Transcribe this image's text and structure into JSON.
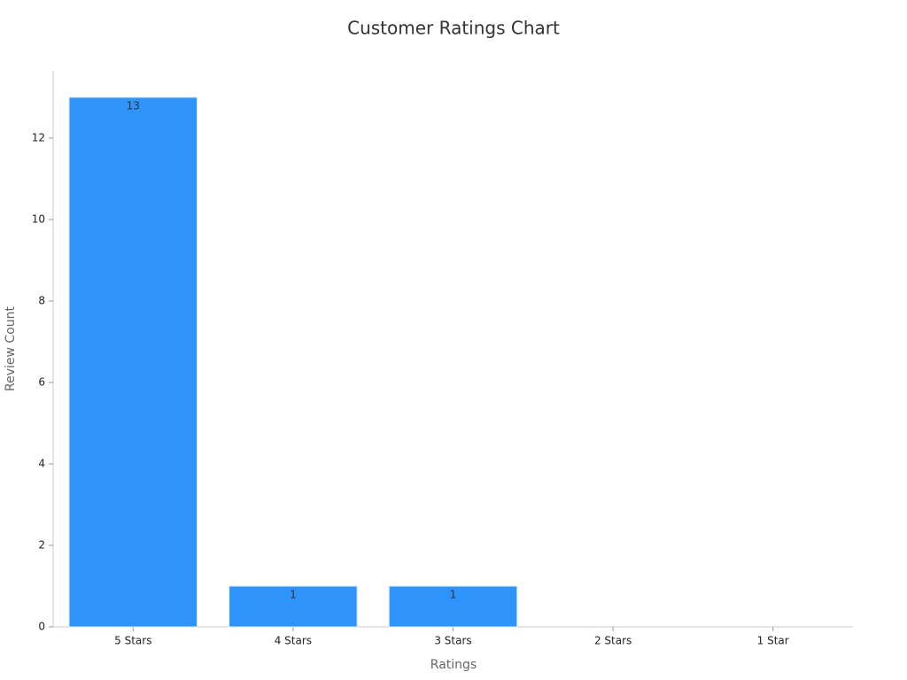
{
  "chart_data": {
    "type": "bar",
    "title": "Customer Ratings Chart",
    "x_label": "Ratings",
    "y_label": "Review Count",
    "categories": [
      "5 Stars",
      "4 Stars",
      "3 Stars",
      "2 Stars",
      "1 Star"
    ],
    "values": [
      13,
      1,
      1,
      0,
      0
    ],
    "color": "#2e93fa",
    "ylim": [
      0,
      13.65
    ],
    "yticks": [
      0,
      2,
      4,
      6,
      8,
      10,
      12
    ],
    "grid": false
  }
}
